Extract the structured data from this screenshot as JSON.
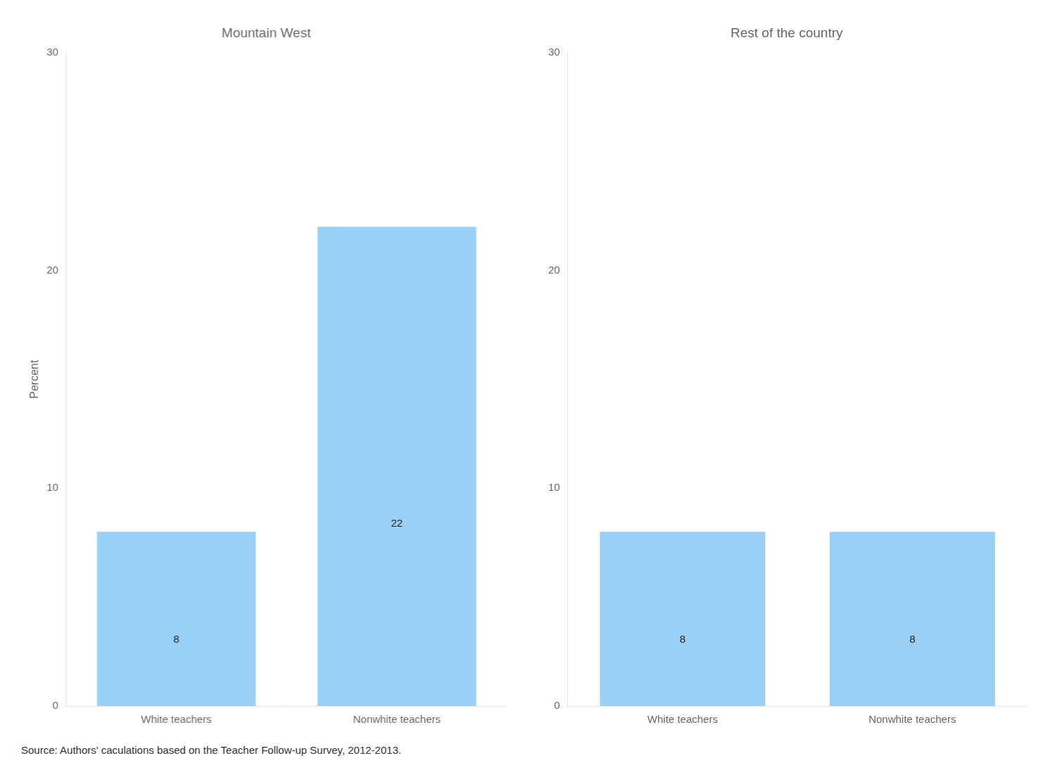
{
  "chart_data": [
    {
      "type": "bar",
      "title": "Mountain West",
      "ylabel": "Percent",
      "categories": [
        "White teachers",
        "Nonwhite teachers"
      ],
      "values": [
        8,
        22
      ],
      "ylim": [
        0,
        30
      ],
      "yticks": [
        0,
        10,
        20,
        30
      ],
      "grid": false,
      "data_labels": true,
      "annotation": "Source: Authors' caculations based on the Teacher Follow-up Survey, 2012-2013."
    },
    {
      "type": "bar",
      "title": "Rest of the country",
      "categories": [
        "White teachers",
        "Nonwhite teachers"
      ],
      "values": [
        8,
        8
      ],
      "ylim": [
        0,
        30
      ],
      "yticks": [
        0,
        10,
        20,
        30
      ],
      "grid": false,
      "data_labels": true
    }
  ]
}
